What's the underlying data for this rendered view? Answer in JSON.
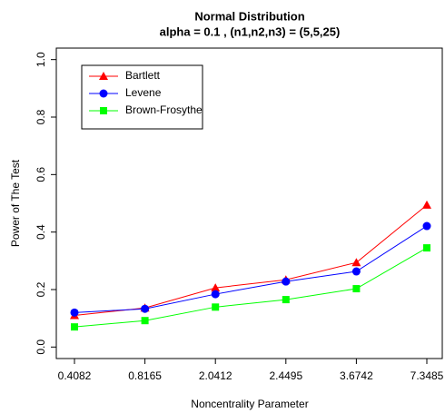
{
  "chart_data": {
    "type": "line",
    "title": "Normal Distribution",
    "subtitle": "alpha = 0.1 , (n1,n2,n3) = (5,5,25)",
    "x_label": "Noncentrality Parameter",
    "y_label": "Power of The Test",
    "categories": [
      "0.4082",
      "0.8165",
      "2.0412",
      "2.4495",
      "3.6742",
      "7.3485"
    ],
    "ylim": [
      0,
      1
    ],
    "yticks": [
      {
        "value": 0,
        "label": "0.0"
      },
      0.2,
      0.4,
      0.6,
      0.8,
      {
        "value": 1,
        "label": "1.0"
      }
    ],
    "legend": "top-left",
    "series": [
      {
        "name": "Bartlett",
        "color": "#ff0000",
        "marker": "triangle",
        "values": [
          0.11,
          0.136,
          0.206,
          0.234,
          0.294,
          0.494
        ]
      },
      {
        "name": "Levene",
        "color": "#0000ff",
        "marker": "circle",
        "values": [
          0.12,
          0.133,
          0.184,
          0.228,
          0.263,
          0.421
        ]
      },
      {
        "name": "Brown-Frosythe",
        "color": "#00ff00",
        "marker": "square",
        "values": [
          0.07,
          0.092,
          0.139,
          0.165,
          0.203,
          0.345
        ]
      }
    ]
  }
}
